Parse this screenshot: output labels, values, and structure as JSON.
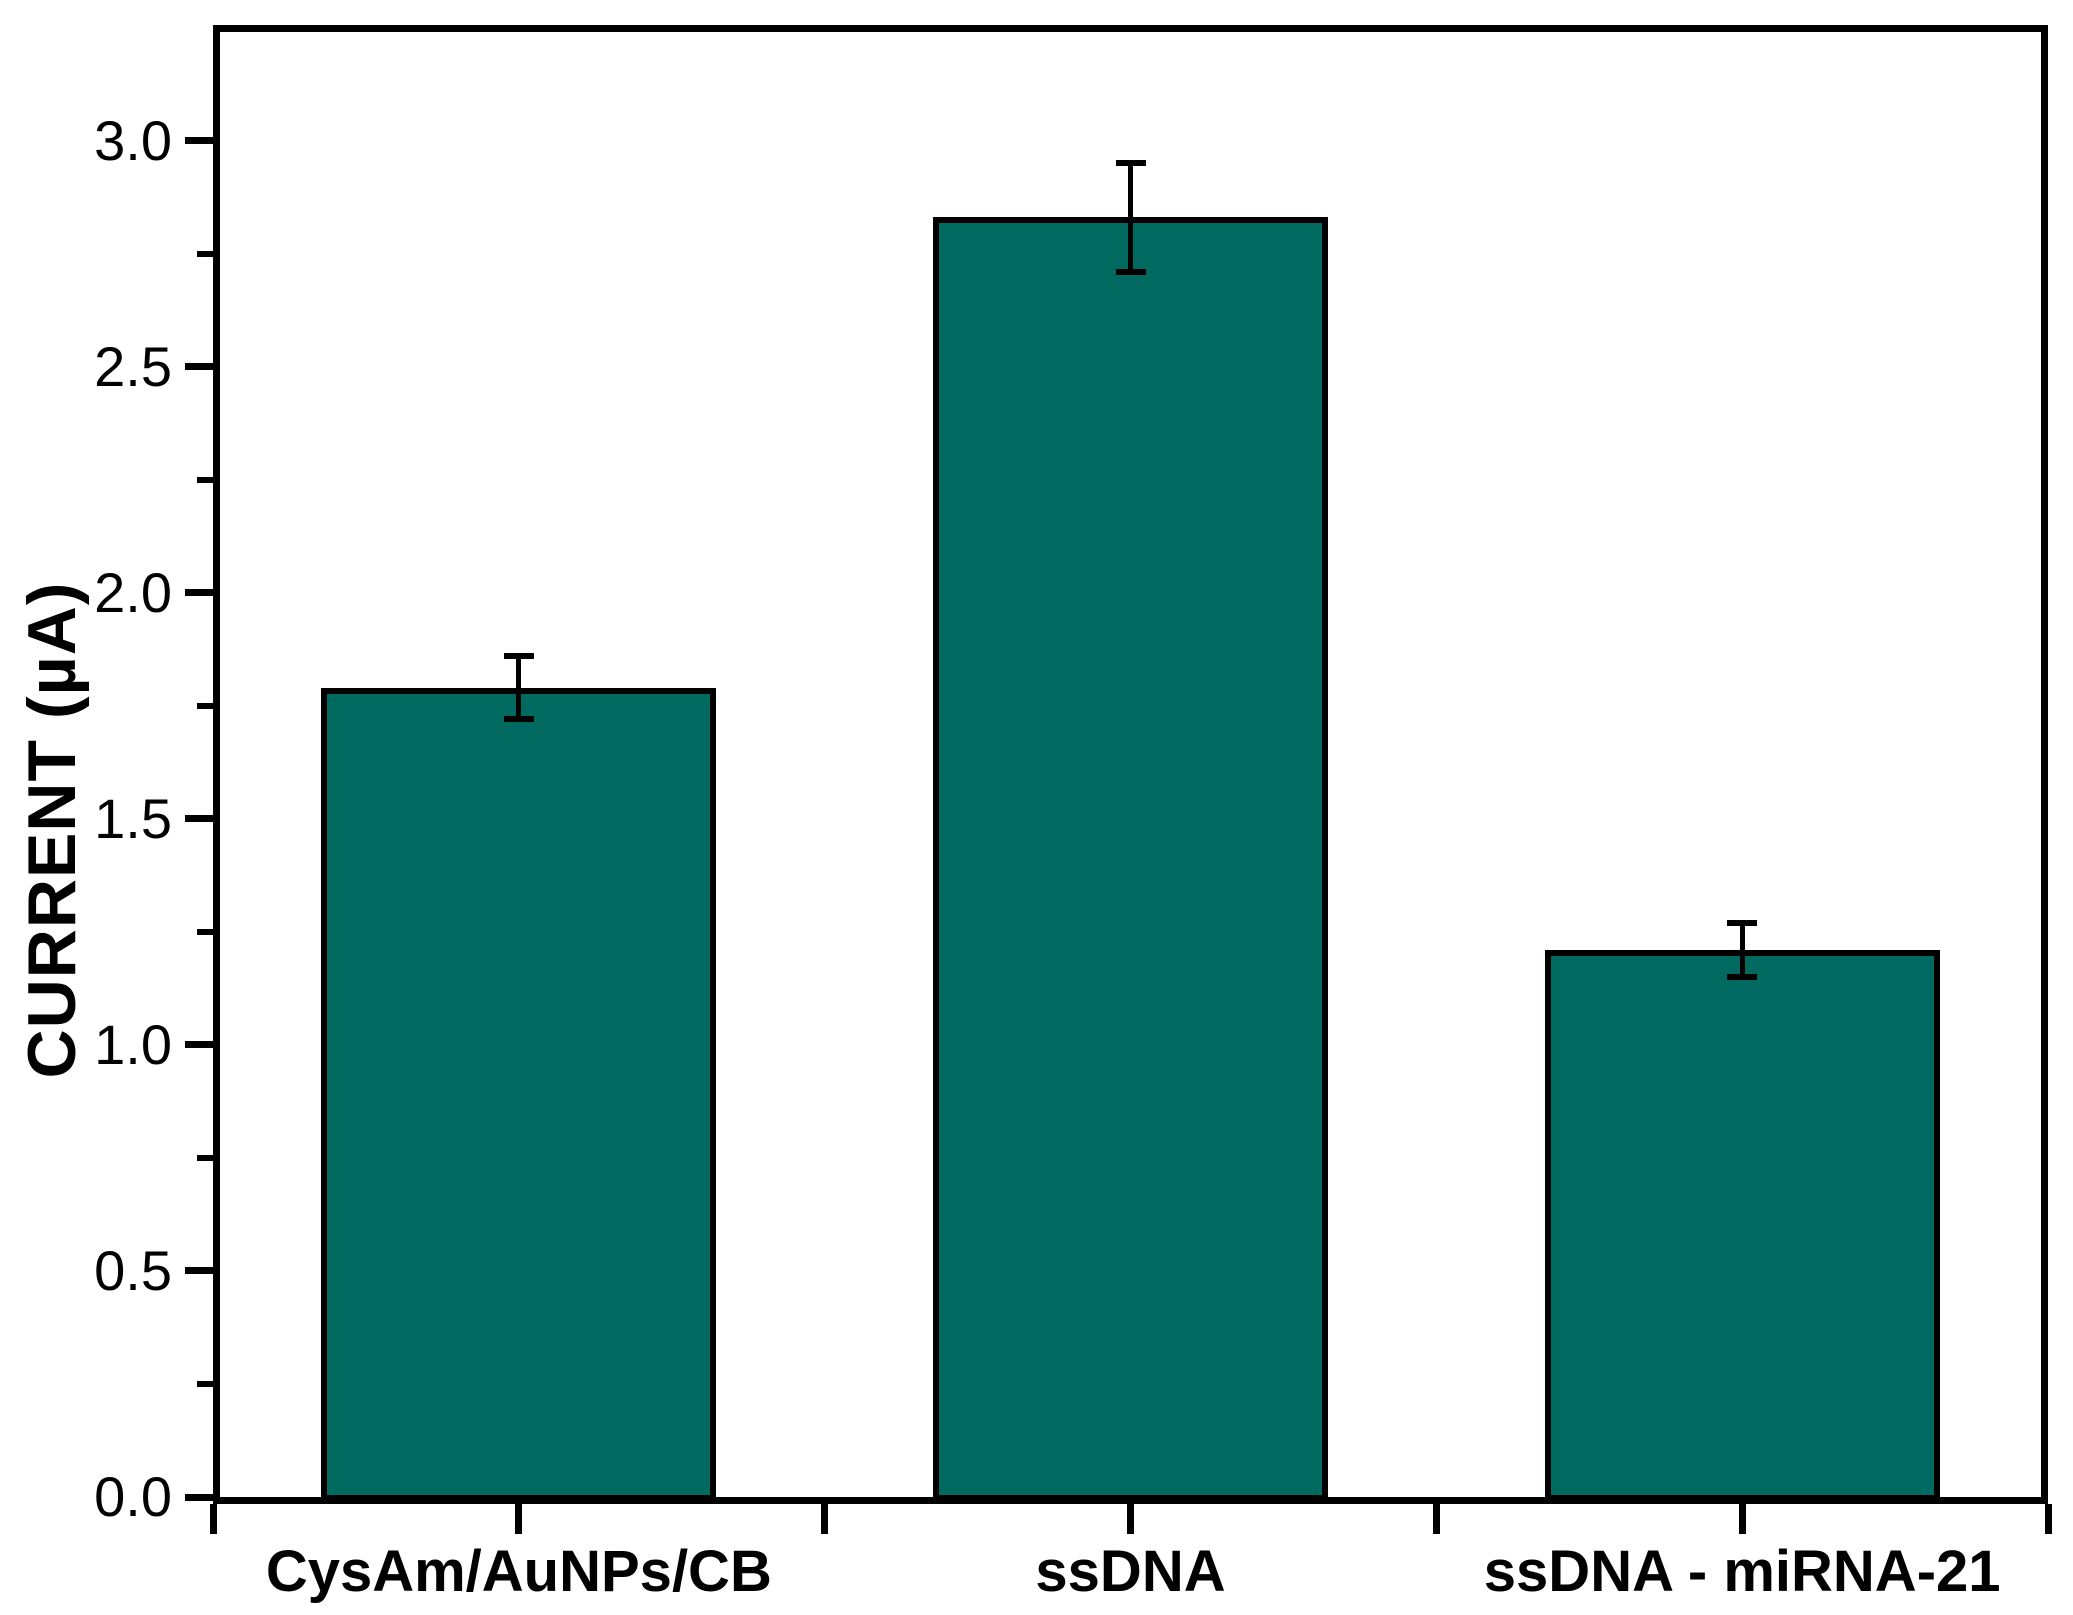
{
  "chart_data": {
    "type": "bar",
    "title": "",
    "xlabel": "",
    "ylabel": "CURRENT (µA)",
    "categories": [
      "CysAm/AuNPs/CB",
      "ssDNA",
      "ssDNA - miRNA-21"
    ],
    "values": [
      1.79,
      2.83,
      1.21
    ],
    "errors": [
      0.07,
      0.12,
      0.06
    ],
    "ylim": [
      0,
      3.24
    ],
    "ytick_values": [
      0.0,
      0.5,
      1.0,
      1.5,
      2.0,
      2.5,
      3.0
    ],
    "ytick_labels": [
      "0.0",
      "0.5",
      "1.0",
      "1.5",
      "2.0",
      "2.5",
      "3.0"
    ],
    "minor_ytick_values": [
      0.25,
      0.75,
      1.25,
      1.75,
      2.25,
      2.75
    ],
    "bar_color": "#006a60",
    "bar_border_color": "#000000",
    "error_bar_color": "#000000",
    "axis_color": "#000000",
    "grid": false,
    "legend_position": "none"
  }
}
